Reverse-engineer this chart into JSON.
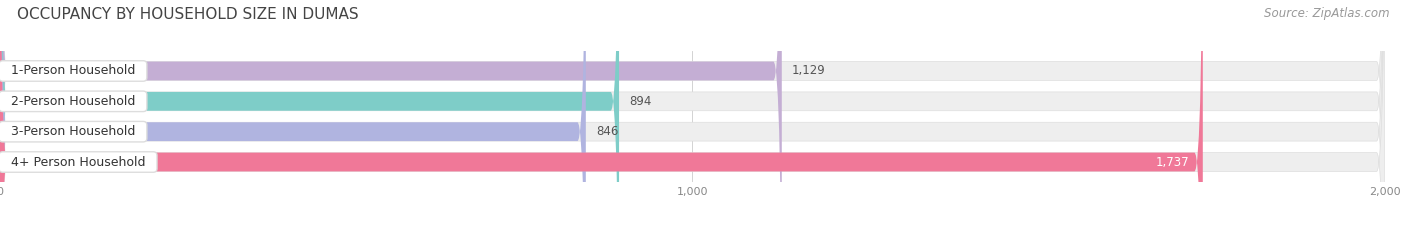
{
  "title": "OCCUPANCY BY HOUSEHOLD SIZE IN DUMAS",
  "source": "Source: ZipAtlas.com",
  "categories": [
    "1-Person Household",
    "2-Person Household",
    "3-Person Household",
    "4+ Person Household"
  ],
  "values": [
    1129,
    894,
    846,
    1737
  ],
  "bar_colors": [
    "#c4aed4",
    "#7ecdc8",
    "#b0b4e0",
    "#f07898"
  ],
  "value_colors": [
    "#555555",
    "#555555",
    "#555555",
    "#ffffff"
  ],
  "xlim": [
    0,
    2000
  ],
  "xticks": [
    0,
    1000,
    2000
  ],
  "background_color": "#ffffff",
  "bar_background_color": "#eeeeee",
  "title_fontsize": 11,
  "source_fontsize": 8.5,
  "label_fontsize": 9,
  "value_fontsize": 8.5,
  "bar_height": 0.62,
  "fig_width": 14.06,
  "fig_height": 2.33
}
